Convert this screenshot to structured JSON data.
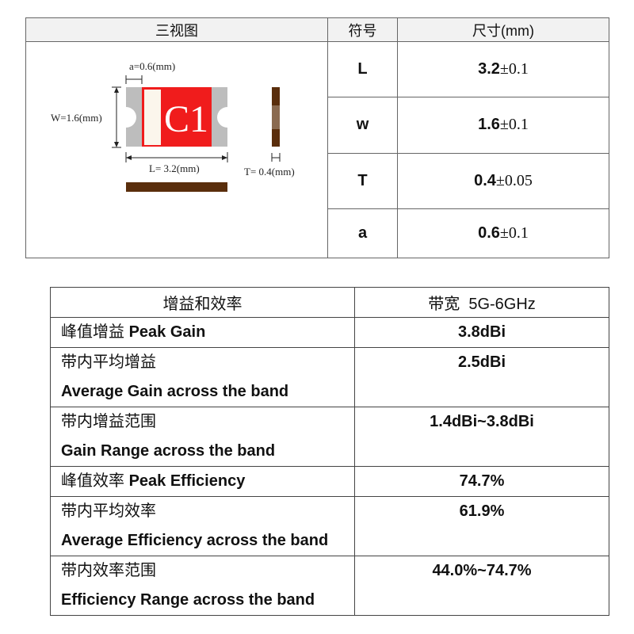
{
  "dimensions_table": {
    "headers": [
      "三视图",
      "符号",
      "尺寸(mm)"
    ],
    "diagram": {
      "chip_label": "C1",
      "a_label": "a=0.6(mm)",
      "w_label": "W=1.6(mm)",
      "l_label": "L= 3.2(mm)",
      "t_label": "T= 0.4(mm)",
      "colors": {
        "body": "#f01c1c",
        "electrode": "#bdbdbd",
        "side": "#5a2e0c",
        "stripe": "#fbf6ec"
      }
    },
    "rows": [
      {
        "symbol": "L",
        "nominal": "3.2",
        "tolerance": "±0.1"
      },
      {
        "symbol": "w",
        "nominal": "1.6",
        "tolerance": "±0.1"
      },
      {
        "symbol": "T",
        "nominal": "0.4",
        "tolerance": "±0.05"
      },
      {
        "symbol": "a",
        "nominal": "0.6",
        "tolerance": "±0.1"
      }
    ]
  },
  "performance_table": {
    "headers": [
      "增益和效率",
      "带宽  5G-6GHz"
    ],
    "rows": [
      {
        "zh": "峰值增益",
        "en": "Peak Gain",
        "inline": true,
        "value": "3.8dBi"
      },
      {
        "zh": "带内平均增益",
        "en": "Average Gain across the band",
        "inline": false,
        "value": "2.5dBi"
      },
      {
        "zh": "带内增益范围",
        "en": "Gain Range across the band",
        "inline": false,
        "value": "1.4dBi~3.8dBi"
      },
      {
        "zh": "峰值效率",
        "en": "Peak Efficiency",
        "inline": true,
        "value": "74.7%"
      },
      {
        "zh": "带内平均效率",
        "en": "Average Efficiency across the band",
        "inline": false,
        "value": "61.9%"
      },
      {
        "zh": "带内效率范围",
        "en": "Efficiency Range across the band",
        "inline": false,
        "value": "44.0%~74.7%"
      }
    ]
  }
}
